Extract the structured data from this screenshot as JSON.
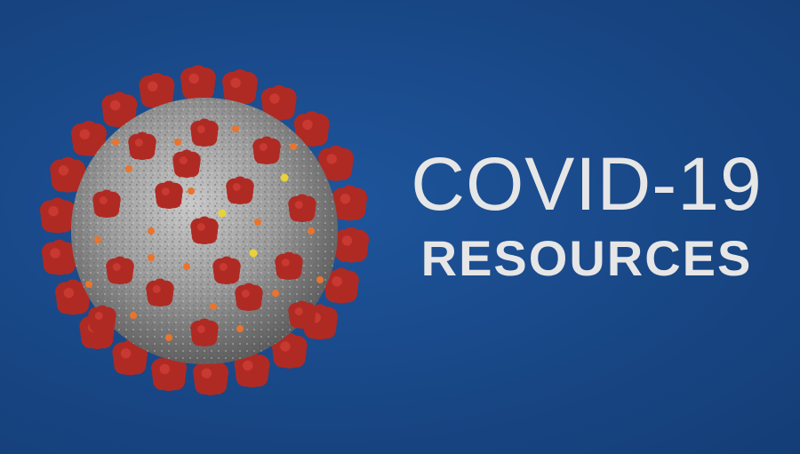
{
  "banner": {
    "title_line1": "COVID-19",
    "title_line2": "RESOURCES"
  },
  "colors": {
    "background": "#1a4a8a",
    "text": "#e6e6e6",
    "virus_body": "#9a9a9a",
    "spike": "#b02a24",
    "protein_orange": "#e8742e",
    "protein_yellow": "#e8d23a"
  },
  "image": {
    "subject": "coronavirus-particle-illustration"
  }
}
